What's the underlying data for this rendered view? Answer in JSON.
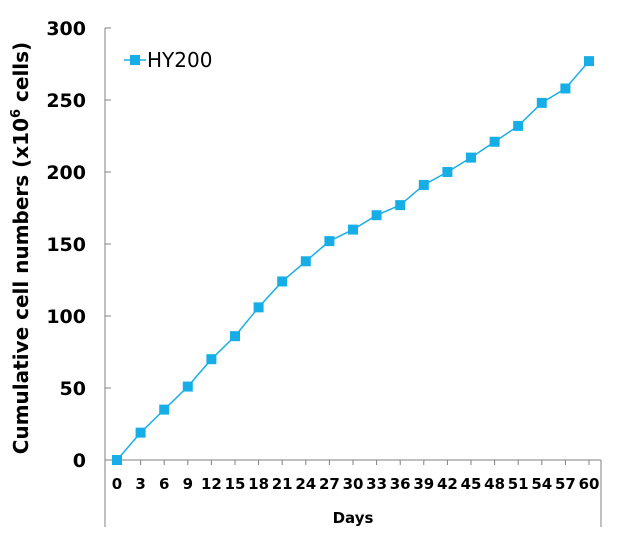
{
  "chart_data": {
    "type": "line",
    "title": "",
    "xlabel": "Days",
    "ylabel": "Cumulative cell numbers (x10",
    "ylabel_sup": "6",
    "ylabel_tail": " cells)",
    "x": [
      0,
      3,
      6,
      9,
      12,
      15,
      18,
      21,
      24,
      27,
      30,
      33,
      36,
      39,
      42,
      45,
      48,
      51,
      54,
      57,
      60
    ],
    "x_tick_labels": [
      "0",
      "3",
      "6",
      "9",
      "12",
      "15",
      "18",
      "21",
      "24",
      "27",
      "30",
      "33",
      "36",
      "39",
      "42",
      "45",
      "48",
      "51",
      "54",
      "57",
      "60"
    ],
    "ylim": [
      0,
      300
    ],
    "y_ticks": [
      "0",
      "50",
      "100",
      "150",
      "200",
      "250",
      "300"
    ],
    "series": [
      {
        "name": "HY200",
        "color": "#17AEE8",
        "values": [
          0,
          19,
          35,
          51,
          70,
          86,
          106,
          124,
          138,
          152,
          160,
          170,
          177,
          191,
          200,
          210,
          221,
          232,
          248,
          258,
          277
        ]
      }
    ],
    "legend_position": "top-left",
    "grid": false
  }
}
